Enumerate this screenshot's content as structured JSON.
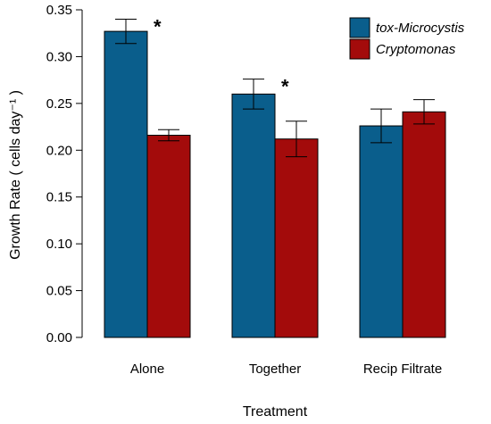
{
  "chart_data": {
    "type": "bar",
    "categories": [
      "Alone",
      "Together",
      "Recip Filtrate"
    ],
    "series": [
      {
        "name": "tox-Microcystis",
        "color": "#0a5e8c",
        "values": [
          0.327,
          0.26,
          0.226
        ],
        "errors": [
          0.013,
          0.016,
          0.018
        ]
      },
      {
        "name": "Cryptomonas",
        "color": "#a30b0b",
        "values": [
          0.216,
          0.212,
          0.241
        ],
        "errors": [
          0.006,
          0.019,
          0.013
        ]
      }
    ],
    "significance": [
      {
        "category": "Alone",
        "label": "*"
      },
      {
        "category": "Together",
        "label": "*"
      }
    ],
    "xlabel": "Treatment",
    "ylabel": "Growth Rate ( cells day⁻¹ )",
    "ylim": [
      0,
      0.35
    ],
    "yticks": [
      "0.00",
      "0.05",
      "0.10",
      "0.15",
      "0.20",
      "0.25",
      "0.30",
      "0.35"
    ],
    "ytick_values": [
      0,
      0.05,
      0.1,
      0.15,
      0.2,
      0.25,
      0.3,
      0.35
    ],
    "legend_position": "top-right",
    "grid": false
  }
}
